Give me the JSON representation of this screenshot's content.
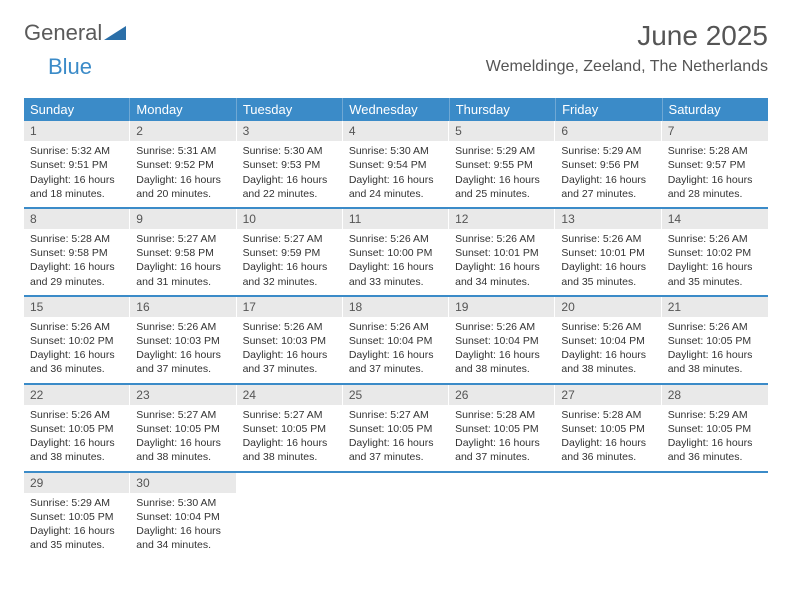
{
  "logo": {
    "text_gray": "General",
    "text_blue": "Blue",
    "shape_color": "#2b6fa8"
  },
  "header": {
    "month_title": "June 2025",
    "location": "Wemeldinge, Zeeland, The Netherlands"
  },
  "colors": {
    "header_bg": "#3b8bc8",
    "daynum_bg": "#e9e9e9",
    "text_gray": "#555555"
  },
  "weekdays": [
    "Sunday",
    "Monday",
    "Tuesday",
    "Wednesday",
    "Thursday",
    "Friday",
    "Saturday"
  ],
  "weeks": [
    [
      {
        "n": "1",
        "sunrise": "Sunrise: 5:32 AM",
        "sunset": "Sunset: 9:51 PM",
        "daylight": "Daylight: 16 hours and 18 minutes."
      },
      {
        "n": "2",
        "sunrise": "Sunrise: 5:31 AM",
        "sunset": "Sunset: 9:52 PM",
        "daylight": "Daylight: 16 hours and 20 minutes."
      },
      {
        "n": "3",
        "sunrise": "Sunrise: 5:30 AM",
        "sunset": "Sunset: 9:53 PM",
        "daylight": "Daylight: 16 hours and 22 minutes."
      },
      {
        "n": "4",
        "sunrise": "Sunrise: 5:30 AM",
        "sunset": "Sunset: 9:54 PM",
        "daylight": "Daylight: 16 hours and 24 minutes."
      },
      {
        "n": "5",
        "sunrise": "Sunrise: 5:29 AM",
        "sunset": "Sunset: 9:55 PM",
        "daylight": "Daylight: 16 hours and 25 minutes."
      },
      {
        "n": "6",
        "sunrise": "Sunrise: 5:29 AM",
        "sunset": "Sunset: 9:56 PM",
        "daylight": "Daylight: 16 hours and 27 minutes."
      },
      {
        "n": "7",
        "sunrise": "Sunrise: 5:28 AM",
        "sunset": "Sunset: 9:57 PM",
        "daylight": "Daylight: 16 hours and 28 minutes."
      }
    ],
    [
      {
        "n": "8",
        "sunrise": "Sunrise: 5:28 AM",
        "sunset": "Sunset: 9:58 PM",
        "daylight": "Daylight: 16 hours and 29 minutes."
      },
      {
        "n": "9",
        "sunrise": "Sunrise: 5:27 AM",
        "sunset": "Sunset: 9:58 PM",
        "daylight": "Daylight: 16 hours and 31 minutes."
      },
      {
        "n": "10",
        "sunrise": "Sunrise: 5:27 AM",
        "sunset": "Sunset: 9:59 PM",
        "daylight": "Daylight: 16 hours and 32 minutes."
      },
      {
        "n": "11",
        "sunrise": "Sunrise: 5:26 AM",
        "sunset": "Sunset: 10:00 PM",
        "daylight": "Daylight: 16 hours and 33 minutes."
      },
      {
        "n": "12",
        "sunrise": "Sunrise: 5:26 AM",
        "sunset": "Sunset: 10:01 PM",
        "daylight": "Daylight: 16 hours and 34 minutes."
      },
      {
        "n": "13",
        "sunrise": "Sunrise: 5:26 AM",
        "sunset": "Sunset: 10:01 PM",
        "daylight": "Daylight: 16 hours and 35 minutes."
      },
      {
        "n": "14",
        "sunrise": "Sunrise: 5:26 AM",
        "sunset": "Sunset: 10:02 PM",
        "daylight": "Daylight: 16 hours and 35 minutes."
      }
    ],
    [
      {
        "n": "15",
        "sunrise": "Sunrise: 5:26 AM",
        "sunset": "Sunset: 10:02 PM",
        "daylight": "Daylight: 16 hours and 36 minutes."
      },
      {
        "n": "16",
        "sunrise": "Sunrise: 5:26 AM",
        "sunset": "Sunset: 10:03 PM",
        "daylight": "Daylight: 16 hours and 37 minutes."
      },
      {
        "n": "17",
        "sunrise": "Sunrise: 5:26 AM",
        "sunset": "Sunset: 10:03 PM",
        "daylight": "Daylight: 16 hours and 37 minutes."
      },
      {
        "n": "18",
        "sunrise": "Sunrise: 5:26 AM",
        "sunset": "Sunset: 10:04 PM",
        "daylight": "Daylight: 16 hours and 37 minutes."
      },
      {
        "n": "19",
        "sunrise": "Sunrise: 5:26 AM",
        "sunset": "Sunset: 10:04 PM",
        "daylight": "Daylight: 16 hours and 38 minutes."
      },
      {
        "n": "20",
        "sunrise": "Sunrise: 5:26 AM",
        "sunset": "Sunset: 10:04 PM",
        "daylight": "Daylight: 16 hours and 38 minutes."
      },
      {
        "n": "21",
        "sunrise": "Sunrise: 5:26 AM",
        "sunset": "Sunset: 10:05 PM",
        "daylight": "Daylight: 16 hours and 38 minutes."
      }
    ],
    [
      {
        "n": "22",
        "sunrise": "Sunrise: 5:26 AM",
        "sunset": "Sunset: 10:05 PM",
        "daylight": "Daylight: 16 hours and 38 minutes."
      },
      {
        "n": "23",
        "sunrise": "Sunrise: 5:27 AM",
        "sunset": "Sunset: 10:05 PM",
        "daylight": "Daylight: 16 hours and 38 minutes."
      },
      {
        "n": "24",
        "sunrise": "Sunrise: 5:27 AM",
        "sunset": "Sunset: 10:05 PM",
        "daylight": "Daylight: 16 hours and 38 minutes."
      },
      {
        "n": "25",
        "sunrise": "Sunrise: 5:27 AM",
        "sunset": "Sunset: 10:05 PM",
        "daylight": "Daylight: 16 hours and 37 minutes."
      },
      {
        "n": "26",
        "sunrise": "Sunrise: 5:28 AM",
        "sunset": "Sunset: 10:05 PM",
        "daylight": "Daylight: 16 hours and 37 minutes."
      },
      {
        "n": "27",
        "sunrise": "Sunrise: 5:28 AM",
        "sunset": "Sunset: 10:05 PM",
        "daylight": "Daylight: 16 hours and 36 minutes."
      },
      {
        "n": "28",
        "sunrise": "Sunrise: 5:29 AM",
        "sunset": "Sunset: 10:05 PM",
        "daylight": "Daylight: 16 hours and 36 minutes."
      }
    ],
    [
      {
        "n": "29",
        "sunrise": "Sunrise: 5:29 AM",
        "sunset": "Sunset: 10:05 PM",
        "daylight": "Daylight: 16 hours and 35 minutes."
      },
      {
        "n": "30",
        "sunrise": "Sunrise: 5:30 AM",
        "sunset": "Sunset: 10:04 PM",
        "daylight": "Daylight: 16 hours and 34 minutes."
      },
      null,
      null,
      null,
      null,
      null
    ]
  ]
}
